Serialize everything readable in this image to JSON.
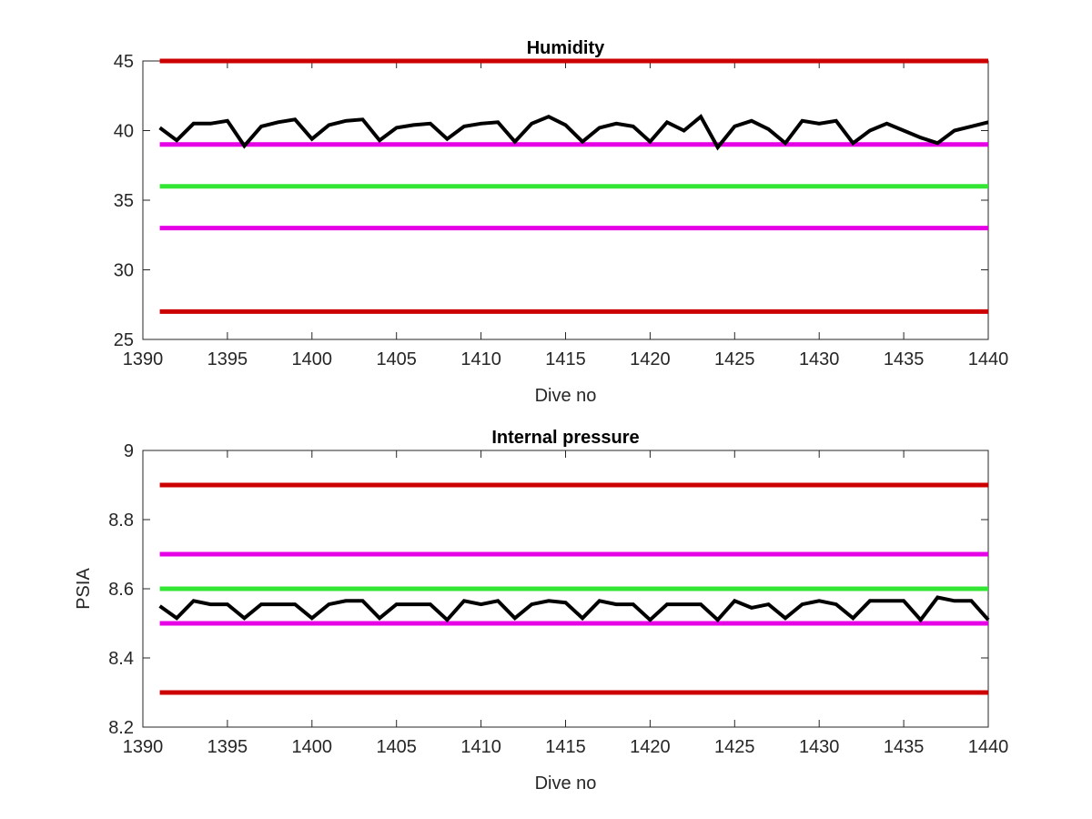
{
  "chart_data": [
    {
      "type": "line",
      "title": "Humidity",
      "xlabel": "Dive no",
      "ylabel": "",
      "xlim": [
        1390,
        1440
      ],
      "ylim": [
        25,
        45
      ],
      "xticks": [
        "1390",
        "1395",
        "1400",
        "1405",
        "1410",
        "1415",
        "1420",
        "1425",
        "1430",
        "1435",
        "1440"
      ],
      "yticks": [
        "25",
        "30",
        "35",
        "40",
        "45"
      ],
      "grid": false,
      "thresholds": [
        {
          "value": 45,
          "color": "#cc0000",
          "x_range": [
            1391,
            1440
          ]
        },
        {
          "value": 39,
          "color": "#e600e6",
          "x_range": [
            1391,
            1440
          ]
        },
        {
          "value": 36,
          "color": "#33e633",
          "x_range": [
            1391,
            1440
          ]
        },
        {
          "value": 33,
          "color": "#e600e6",
          "x_range": [
            1391,
            1440
          ]
        },
        {
          "value": 27,
          "color": "#cc0000",
          "x_range": [
            1391,
            1440
          ]
        }
      ],
      "series": [
        {
          "color": "#000000",
          "x": [
            1391,
            1392,
            1393,
            1394,
            1395,
            1396,
            1397,
            1398,
            1399,
            1400,
            1401,
            1402,
            1403,
            1404,
            1405,
            1406,
            1407,
            1408,
            1409,
            1410,
            1411,
            1412,
            1413,
            1414,
            1415,
            1416,
            1417,
            1418,
            1419,
            1420,
            1421,
            1422,
            1423,
            1424,
            1425,
            1426,
            1427,
            1428,
            1429,
            1430,
            1431,
            1432,
            1433,
            1434,
            1435,
            1436,
            1437,
            1438,
            1439,
            1440
          ],
          "y": [
            40.2,
            39.3,
            40.5,
            40.5,
            40.7,
            38.9,
            40.3,
            40.6,
            40.8,
            39.4,
            40.4,
            40.7,
            40.8,
            39.3,
            40.2,
            40.4,
            40.5,
            39.4,
            40.3,
            40.5,
            40.6,
            39.2,
            40.5,
            41.0,
            40.4,
            39.2,
            40.2,
            40.5,
            40.3,
            39.2,
            40.6,
            40.0,
            41.0,
            38.8,
            40.3,
            40.7,
            40.1,
            39.1,
            40.7,
            40.5,
            40.7,
            39.1,
            40.0,
            40.5,
            40.0,
            39.5,
            39.1,
            40.0,
            40.3,
            40.6
          ]
        }
      ]
    },
    {
      "type": "line",
      "title": "Internal pressure",
      "xlabel": "Dive no",
      "ylabel": "PSIA",
      "xlim": [
        1390,
        1440
      ],
      "ylim": [
        8.2,
        9
      ],
      "xticks": [
        "1390",
        "1395",
        "1400",
        "1405",
        "1410",
        "1415",
        "1420",
        "1425",
        "1430",
        "1435",
        "1440"
      ],
      "yticks": [
        "8.2",
        "8.4",
        "8.6",
        "8.8",
        "9"
      ],
      "grid": false,
      "thresholds": [
        {
          "value": 8.9,
          "color": "#cc0000",
          "x_range": [
            1391,
            1440
          ]
        },
        {
          "value": 8.7,
          "color": "#e600e6",
          "x_range": [
            1391,
            1440
          ]
        },
        {
          "value": 8.6,
          "color": "#33e633",
          "x_range": [
            1391,
            1440
          ]
        },
        {
          "value": 8.5,
          "color": "#e600e6",
          "x_range": [
            1391,
            1440
          ]
        },
        {
          "value": 8.3,
          "color": "#cc0000",
          "x_range": [
            1391,
            1440
          ]
        }
      ],
      "series": [
        {
          "color": "#000000",
          "x": [
            1391,
            1392,
            1393,
            1394,
            1395,
            1396,
            1397,
            1398,
            1399,
            1400,
            1401,
            1402,
            1403,
            1404,
            1405,
            1406,
            1407,
            1408,
            1409,
            1410,
            1411,
            1412,
            1413,
            1414,
            1415,
            1416,
            1417,
            1418,
            1419,
            1420,
            1421,
            1422,
            1423,
            1424,
            1425,
            1426,
            1427,
            1428,
            1429,
            1430,
            1431,
            1432,
            1433,
            1434,
            1435,
            1436,
            1437,
            1438,
            1439,
            1440
          ],
          "y": [
            8.55,
            8.515,
            8.565,
            8.555,
            8.555,
            8.515,
            8.555,
            8.555,
            8.555,
            8.515,
            8.555,
            8.565,
            8.565,
            8.515,
            8.555,
            8.555,
            8.555,
            8.51,
            8.565,
            8.555,
            8.565,
            8.515,
            8.555,
            8.565,
            8.56,
            8.515,
            8.565,
            8.555,
            8.555,
            8.51,
            8.555,
            8.555,
            8.555,
            8.51,
            8.565,
            8.545,
            8.555,
            8.515,
            8.555,
            8.565,
            8.555,
            8.515,
            8.565,
            8.565,
            8.565,
            8.51,
            8.575,
            8.565,
            8.565,
            8.51
          ]
        }
      ]
    }
  ]
}
